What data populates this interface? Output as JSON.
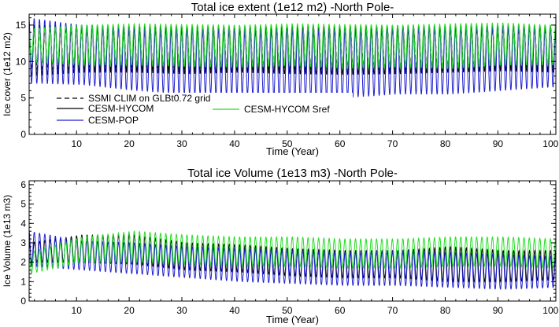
{
  "chart_data": [
    {
      "type": "line",
      "title": "Total ice extent (1e12 m2)   -North Pole-",
      "xlabel": "Time (Year)",
      "ylabel": "Ice cover (1e12 m2)",
      "xlim": [
        1,
        101
      ],
      "ylim": [
        0,
        16.5
      ],
      "xticks": [
        "10",
        "20",
        "30",
        "40",
        "50",
        "60",
        "70",
        "80",
        "90",
        "100"
      ],
      "yticks": [
        "0",
        "5",
        "10",
        "15"
      ],
      "legend_position": "lower-left",
      "series": [
        {
          "name": "SSMI CLIM on GLBt0.72 grid",
          "color": "#000000",
          "dash": true,
          "annual_max": 14.5,
          "annual_min": 9.0
        },
        {
          "name": "CESM-HYCOM",
          "color": "#000000",
          "annual_max": [
            15.0,
            15.0,
            14.8,
            14.9,
            14.8,
            14.9,
            14.9,
            14.9,
            14.9,
            15.0,
            14.9
          ],
          "annual_min": [
            8.0,
            8.5,
            8.5,
            8.3,
            8.5,
            8.3,
            8.2,
            8.3,
            8.5,
            8.7,
            8.5
          ]
        },
        {
          "name": "CESM-POP",
          "color": "#2020d0",
          "annual_max": [
            16.0,
            15.0,
            14.5,
            14.4,
            14.5,
            14.3,
            14.3,
            14.5,
            14.7,
            14.9,
            14.6
          ],
          "annual_min": [
            7.0,
            6.8,
            6.0,
            5.5,
            5.5,
            5.0,
            5.0,
            5.5,
            5.5,
            6.0,
            6.5
          ]
        },
        {
          "name": "CESM-HYCOM Sref",
          "color": "#22dd22",
          "annual_max": [
            14.5,
            15.0,
            15.2,
            15.1,
            15.0,
            15.2,
            15.1,
            15.0,
            15.2,
            15.3,
            15.0
          ],
          "annual_min": [
            10.0,
            9.5,
            9.5,
            9.3,
            9.2,
            9.4,
            9.0,
            9.2,
            9.0,
            9.5,
            9.5
          ]
        }
      ]
    },
    {
      "type": "line",
      "title": "Total ice Volume (1e13 m3)   -North Pole-",
      "xlabel": "Time (Year)",
      "ylabel": "Ice Volume (1e13 m3)",
      "xlim": [
        1,
        101
      ],
      "ylim": [
        0,
        6.2
      ],
      "xticks": [
        "10",
        "20",
        "30",
        "40",
        "50",
        "60",
        "70",
        "80",
        "90",
        "100"
      ],
      "yticks": [
        "0",
        "1",
        "2",
        "3",
        "4",
        "5",
        "6"
      ],
      "series": [
        {
          "name": "CESM-HYCOM",
          "color": "#000000",
          "annual_max": [
            3.0,
            3.4,
            3.4,
            3.0,
            2.9,
            2.7,
            2.6,
            2.6,
            2.8,
            2.6,
            2.6
          ],
          "annual_min": [
            2.0,
            2.0,
            1.9,
            1.6,
            1.5,
            1.3,
            1.2,
            1.2,
            1.0,
            1.0,
            1.1
          ]
        },
        {
          "name": "CESM-POP",
          "color": "#2020d0",
          "annual_max": [
            3.6,
            3.1,
            3.0,
            2.8,
            2.7,
            2.6,
            2.5,
            2.6,
            2.5,
            2.4,
            2.3
          ],
          "annual_min": [
            1.8,
            1.6,
            1.4,
            1.2,
            1.0,
            0.9,
            0.8,
            0.8,
            0.7,
            0.6,
            0.7
          ]
        },
        {
          "name": "CESM-HYCOM Sref",
          "color": "#22dd22",
          "annual_max": [
            2.5,
            3.3,
            3.6,
            3.4,
            3.3,
            3.3,
            3.2,
            3.2,
            3.3,
            3.3,
            3.2
          ],
          "annual_min": [
            1.4,
            2.0,
            2.0,
            1.9,
            1.8,
            1.8,
            1.7,
            1.7,
            1.8,
            1.8,
            1.7
          ]
        }
      ]
    }
  ]
}
